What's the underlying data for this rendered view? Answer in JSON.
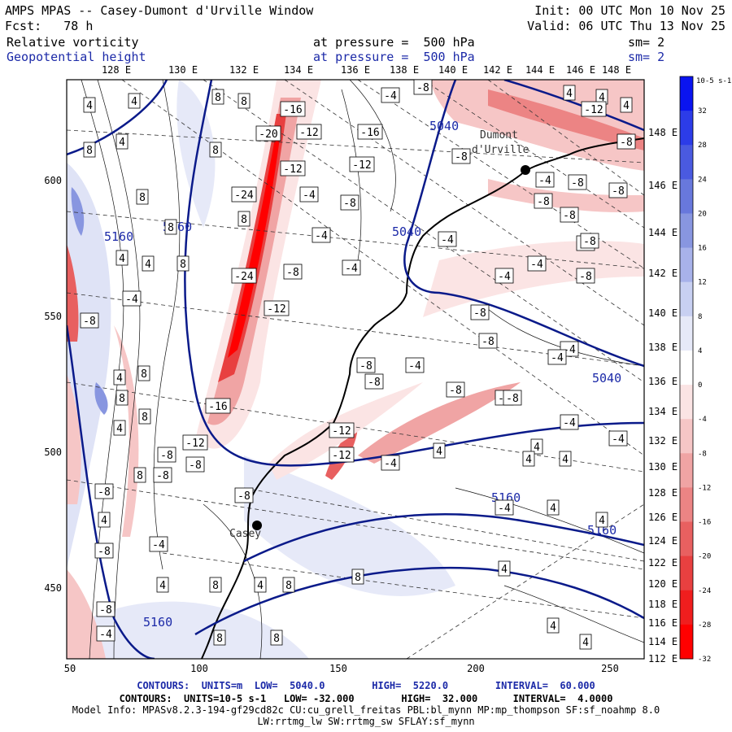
{
  "header": {
    "title": "AMPS MPAS -- Casey-Dumont d'Urville Window",
    "init": "Init: 00 UTC Mon 10 Nov 25",
    "fcst": "Fcst:   78 h",
    "valid": "Valid: 06 UTC Thu 13 Nov 25",
    "field1_name": "Relative vorticity",
    "field1_level": "at pressure =  500 hPa",
    "field1_sm": "sm= 2",
    "field2_name": "Geopotential height",
    "field2_level": "at pressure =  500 hPa",
    "field2_sm": "sm= 2"
  },
  "map_labels": {
    "top_lon": [
      "128 E",
      "130 E",
      "132 E",
      "134 E",
      "136 E",
      "138 E",
      "140 E",
      "142 E",
      "144 E",
      "146 E",
      "148 E"
    ],
    "right_lon": [
      "148 E",
      "146 E",
      "144 E",
      "142 E",
      "140 E",
      "138 E",
      "136 E",
      "134 E",
      "132 E",
      "130 E",
      "128 E",
      "126 E",
      "124 E",
      "122 E",
      "120 E",
      "118 E",
      "116 E",
      "114 E",
      "112 E"
    ],
    "x_ticks": [
      "50",
      "100",
      "150",
      "200",
      "250"
    ],
    "y_ticks": [
      "600",
      "550",
      "500",
      "450"
    ],
    "stations": [
      "Dumont d'Urville",
      "Casey"
    ],
    "height_labels": [
      "5040",
      "5040",
      "5040",
      "5160",
      "5160",
      "5160",
      "5160",
      "5160"
    ],
    "vort_labels": [
      "-20",
      "-16",
      "-12",
      "-8",
      "-4",
      "4",
      "8",
      "-24",
      "-12"
    ]
  },
  "colorbar": {
    "unit": "10-5 s-1",
    "ticks": [
      "32",
      "28",
      "24",
      "20",
      "16",
      "12",
      "8",
      "4",
      "0",
      "-4",
      "-8",
      "-12",
      "-16",
      "-20",
      "-24",
      "-28",
      "-32"
    ],
    "colors": [
      "#0a14f0",
      "#2c3ce8",
      "#4a5ae0",
      "#6878dc",
      "#8896e0",
      "#a8b2ea",
      "#c8d0f2",
      "#e6e9f8",
      "#ffffff",
      "#fbe4e4",
      "#f6c6c6",
      "#f0a4a4",
      "#ec8484",
      "#e86060",
      "#e84040",
      "#f01e1e",
      "#ff0000"
    ]
  },
  "footer": {
    "line1": "CONTOURS:  UNITS=m  LOW=  5040.0        HIGH=  5220.0        INTERVAL=  60.000",
    "line2": "CONTOURS:  UNITS=10-5 s-1   LOW= -32.000        HIGH=  32.000      INTERVAL=  4.0000",
    "line3": "Model Info: MPASv8.2.3-194-gf29cd82c CU:cu_grell_freitas PBL:bl_mynn MP:mp_thompson SF:sf_noahmp 8.0",
    "line4": "LW:rrtmg_lw SW:rrtmg_sw SFLAY:sf_mynn"
  }
}
